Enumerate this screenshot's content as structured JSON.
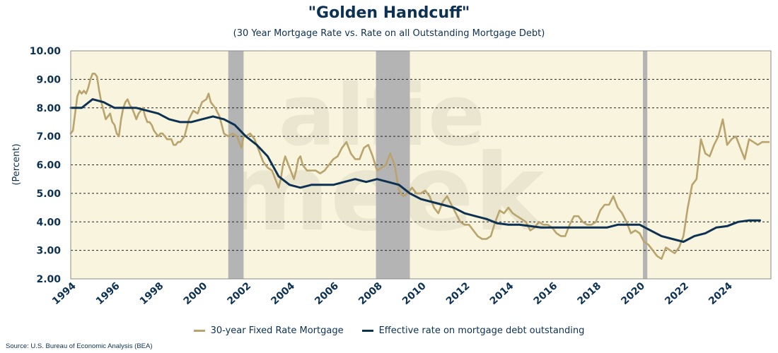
{
  "chart_data": {
    "type": "line",
    "title": "\"Golden Handcuff\"",
    "subtitle": "(30 Year Mortgage Rate vs. Rate on all Outstanding Mortgage Debt)",
    "ylabel": "(Percent)",
    "xlim": [
      1994,
      2026.0
    ],
    "ylim": [
      2.0,
      10.0
    ],
    "x_ticks": [
      "1994",
      "1996",
      "1998",
      "2000",
      "2002",
      "2004",
      "2006",
      "2008",
      "2010",
      "2012",
      "2014",
      "2016",
      "2018",
      "2020",
      "2022",
      "2024"
    ],
    "y_ticks": [
      "2.00",
      "3.00",
      "4.00",
      "5.00",
      "6.00",
      "7.00",
      "8.00",
      "9.00",
      "10.00"
    ],
    "grid": "horizontal-dashed",
    "legend_position": "bottom",
    "recession_bands": [
      [
        2001.2,
        2001.9
      ],
      [
        2007.95,
        2009.5
      ],
      [
        2020.15,
        2020.35
      ]
    ],
    "series": [
      {
        "name": "30-year Fixed Rate Mortgage",
        "color": "#b9a46e",
        "points": [
          [
            1994.0,
            7.1
          ],
          [
            1994.1,
            7.2
          ],
          [
            1994.2,
            7.8
          ],
          [
            1994.3,
            8.4
          ],
          [
            1994.4,
            8.6
          ],
          [
            1994.5,
            8.5
          ],
          [
            1994.6,
            8.6
          ],
          [
            1994.7,
            8.5
          ],
          [
            1994.8,
            8.7
          ],
          [
            1994.9,
            9.0
          ],
          [
            1995.0,
            9.2
          ],
          [
            1995.1,
            9.2
          ],
          [
            1995.2,
            9.1
          ],
          [
            1995.3,
            8.6
          ],
          [
            1995.4,
            8.2
          ],
          [
            1995.5,
            7.9
          ],
          [
            1995.6,
            7.6
          ],
          [
            1995.7,
            7.7
          ],
          [
            1995.8,
            7.8
          ],
          [
            1995.9,
            7.5
          ],
          [
            1996.0,
            7.4
          ],
          [
            1996.1,
            7.1
          ],
          [
            1996.2,
            7.0
          ],
          [
            1996.3,
            7.6
          ],
          [
            1996.4,
            8.0
          ],
          [
            1996.5,
            8.2
          ],
          [
            1996.6,
            8.3
          ],
          [
            1996.7,
            8.1
          ],
          [
            1996.8,
            8.0
          ],
          [
            1996.9,
            7.8
          ],
          [
            1997.0,
            7.6
          ],
          [
            1997.1,
            7.8
          ],
          [
            1997.2,
            7.9
          ],
          [
            1997.3,
            8.0
          ],
          [
            1997.4,
            7.7
          ],
          [
            1997.5,
            7.5
          ],
          [
            1997.6,
            7.5
          ],
          [
            1997.7,
            7.4
          ],
          [
            1997.8,
            7.2
          ],
          [
            1997.9,
            7.1
          ],
          [
            1998.0,
            7.0
          ],
          [
            1998.1,
            7.1
          ],
          [
            1998.2,
            7.1
          ],
          [
            1998.3,
            7.0
          ],
          [
            1998.4,
            6.9
          ],
          [
            1998.5,
            6.9
          ],
          [
            1998.6,
            6.9
          ],
          [
            1998.7,
            6.7
          ],
          [
            1998.8,
            6.7
          ],
          [
            1998.9,
            6.8
          ],
          [
            1999.0,
            6.8
          ],
          [
            1999.2,
            7.0
          ],
          [
            1999.4,
            7.6
          ],
          [
            1999.6,
            7.9
          ],
          [
            1999.8,
            7.8
          ],
          [
            2000.0,
            8.2
          ],
          [
            2000.2,
            8.3
          ],
          [
            2000.3,
            8.5
          ],
          [
            2000.4,
            8.2
          ],
          [
            2000.6,
            8.0
          ],
          [
            2000.8,
            7.7
          ],
          [
            2001.0,
            7.1
          ],
          [
            2001.2,
            7.0
          ],
          [
            2001.4,
            7.1
          ],
          [
            2001.6,
            7.0
          ],
          [
            2001.7,
            6.8
          ],
          [
            2001.8,
            6.6
          ],
          [
            2001.9,
            7.0
          ],
          [
            2002.0,
            7.0
          ],
          [
            2002.2,
            7.1
          ],
          [
            2002.4,
            6.9
          ],
          [
            2002.6,
            6.5
          ],
          [
            2002.8,
            6.1
          ],
          [
            2003.0,
            5.9
          ],
          [
            2003.2,
            5.8
          ],
          [
            2003.3,
            5.6
          ],
          [
            2003.5,
            5.2
          ],
          [
            2003.6,
            5.5
          ],
          [
            2003.7,
            6.0
          ],
          [
            2003.8,
            6.3
          ],
          [
            2004.0,
            5.9
          ],
          [
            2004.2,
            5.5
          ],
          [
            2004.3,
            5.8
          ],
          [
            2004.4,
            6.2
          ],
          [
            2004.5,
            6.3
          ],
          [
            2004.6,
            6.0
          ],
          [
            2004.8,
            5.8
          ],
          [
            2005.0,
            5.8
          ],
          [
            2005.2,
            5.8
          ],
          [
            2005.4,
            5.7
          ],
          [
            2005.6,
            5.8
          ],
          [
            2005.8,
            6.0
          ],
          [
            2006.0,
            6.2
          ],
          [
            2006.2,
            6.3
          ],
          [
            2006.4,
            6.6
          ],
          [
            2006.6,
            6.8
          ],
          [
            2006.8,
            6.4
          ],
          [
            2007.0,
            6.2
          ],
          [
            2007.2,
            6.2
          ],
          [
            2007.4,
            6.6
          ],
          [
            2007.6,
            6.7
          ],
          [
            2007.8,
            6.3
          ],
          [
            2008.0,
            5.8
          ],
          [
            2008.2,
            5.9
          ],
          [
            2008.4,
            6.0
          ],
          [
            2008.6,
            6.4
          ],
          [
            2008.8,
            6.0
          ],
          [
            2009.0,
            5.1
          ],
          [
            2009.2,
            4.9
          ],
          [
            2009.4,
            5.0
          ],
          [
            2009.6,
            5.2
          ],
          [
            2009.8,
            5.0
          ],
          [
            2010.0,
            5.0
          ],
          [
            2010.2,
            5.1
          ],
          [
            2010.4,
            4.9
          ],
          [
            2010.6,
            4.5
          ],
          [
            2010.8,
            4.3
          ],
          [
            2011.0,
            4.7
          ],
          [
            2011.2,
            4.9
          ],
          [
            2011.4,
            4.6
          ],
          [
            2011.6,
            4.3
          ],
          [
            2011.8,
            4.0
          ],
          [
            2012.0,
            3.9
          ],
          [
            2012.2,
            3.9
          ],
          [
            2012.4,
            3.7
          ],
          [
            2012.6,
            3.5
          ],
          [
            2012.8,
            3.4
          ],
          [
            2013.0,
            3.4
          ],
          [
            2013.2,
            3.5
          ],
          [
            2013.4,
            4.0
          ],
          [
            2013.6,
            4.4
          ],
          [
            2013.8,
            4.3
          ],
          [
            2014.0,
            4.5
          ],
          [
            2014.2,
            4.3
          ],
          [
            2014.4,
            4.2
          ],
          [
            2014.6,
            4.1
          ],
          [
            2014.8,
            4.0
          ],
          [
            2015.0,
            3.7
          ],
          [
            2015.2,
            3.8
          ],
          [
            2015.4,
            4.0
          ],
          [
            2015.6,
            3.9
          ],
          [
            2015.8,
            3.9
          ],
          [
            2016.0,
            3.8
          ],
          [
            2016.2,
            3.6
          ],
          [
            2016.4,
            3.5
          ],
          [
            2016.6,
            3.5
          ],
          [
            2016.8,
            3.9
          ],
          [
            2017.0,
            4.2
          ],
          [
            2017.2,
            4.2
          ],
          [
            2017.4,
            4.0
          ],
          [
            2017.6,
            3.9
          ],
          [
            2017.8,
            3.9
          ],
          [
            2018.0,
            4.0
          ],
          [
            2018.2,
            4.4
          ],
          [
            2018.4,
            4.6
          ],
          [
            2018.6,
            4.6
          ],
          [
            2018.8,
            4.9
          ],
          [
            2019.0,
            4.5
          ],
          [
            2019.2,
            4.3
          ],
          [
            2019.4,
            4.0
          ],
          [
            2019.6,
            3.6
          ],
          [
            2019.8,
            3.7
          ],
          [
            2020.0,
            3.6
          ],
          [
            2020.2,
            3.3
          ],
          [
            2020.4,
            3.2
          ],
          [
            2020.6,
            3.0
          ],
          [
            2020.8,
            2.8
          ],
          [
            2021.0,
            2.7
          ],
          [
            2021.2,
            3.1
          ],
          [
            2021.4,
            3.0
          ],
          [
            2021.6,
            2.9
          ],
          [
            2021.8,
            3.1
          ],
          [
            2022.0,
            3.5
          ],
          [
            2022.2,
            4.5
          ],
          [
            2022.4,
            5.3
          ],
          [
            2022.6,
            5.5
          ],
          [
            2022.7,
            6.2
          ],
          [
            2022.8,
            6.9
          ],
          [
            2023.0,
            6.4
          ],
          [
            2023.2,
            6.3
          ],
          [
            2023.4,
            6.7
          ],
          [
            2023.6,
            7.0
          ],
          [
            2023.8,
            7.6
          ],
          [
            2024.0,
            6.7
          ],
          [
            2024.2,
            6.9
          ],
          [
            2024.4,
            7.0
          ],
          [
            2024.6,
            6.6
          ],
          [
            2024.8,
            6.2
          ],
          [
            2025.0,
            6.9
          ],
          [
            2025.2,
            6.8
          ],
          [
            2025.4,
            6.7
          ],
          [
            2025.6,
            6.8
          ],
          [
            2025.9,
            6.8
          ]
        ]
      },
      {
        "name": "Effective rate on mortgage debt outstanding",
        "color": "#0d3152",
        "points": [
          [
            1994.0,
            8.0
          ],
          [
            1994.5,
            8.0
          ],
          [
            1995.0,
            8.3
          ],
          [
            1995.5,
            8.2
          ],
          [
            1996.0,
            8.0
          ],
          [
            1996.5,
            8.0
          ],
          [
            1997.0,
            8.0
          ],
          [
            1997.5,
            7.9
          ],
          [
            1998.0,
            7.8
          ],
          [
            1998.5,
            7.6
          ],
          [
            1999.0,
            7.5
          ],
          [
            1999.5,
            7.5
          ],
          [
            2000.0,
            7.6
          ],
          [
            2000.5,
            7.7
          ],
          [
            2001.0,
            7.6
          ],
          [
            2001.5,
            7.4
          ],
          [
            2002.0,
            7.0
          ],
          [
            2002.5,
            6.7
          ],
          [
            2003.0,
            6.3
          ],
          [
            2003.5,
            5.6
          ],
          [
            2004.0,
            5.3
          ],
          [
            2004.5,
            5.2
          ],
          [
            2005.0,
            5.3
          ],
          [
            2005.5,
            5.3
          ],
          [
            2006.0,
            5.3
          ],
          [
            2006.5,
            5.4
          ],
          [
            2007.0,
            5.5
          ],
          [
            2007.5,
            5.4
          ],
          [
            2008.0,
            5.5
          ],
          [
            2008.5,
            5.4
          ],
          [
            2009.0,
            5.3
          ],
          [
            2009.5,
            5.0
          ],
          [
            2010.0,
            4.8
          ],
          [
            2010.5,
            4.7
          ],
          [
            2011.0,
            4.6
          ],
          [
            2011.5,
            4.5
          ],
          [
            2012.0,
            4.3
          ],
          [
            2012.5,
            4.2
          ],
          [
            2013.0,
            4.1
          ],
          [
            2013.5,
            3.95
          ],
          [
            2014.0,
            3.9
          ],
          [
            2014.5,
            3.9
          ],
          [
            2015.0,
            3.85
          ],
          [
            2015.5,
            3.8
          ],
          [
            2016.0,
            3.8
          ],
          [
            2016.5,
            3.8
          ],
          [
            2017.0,
            3.8
          ],
          [
            2017.5,
            3.8
          ],
          [
            2018.0,
            3.8
          ],
          [
            2018.5,
            3.8
          ],
          [
            2019.0,
            3.9
          ],
          [
            2019.5,
            3.9
          ],
          [
            2020.0,
            3.9
          ],
          [
            2020.5,
            3.7
          ],
          [
            2021.0,
            3.5
          ],
          [
            2021.5,
            3.4
          ],
          [
            2022.0,
            3.3
          ],
          [
            2022.5,
            3.5
          ],
          [
            2023.0,
            3.6
          ],
          [
            2023.5,
            3.8
          ],
          [
            2024.0,
            3.85
          ],
          [
            2024.5,
            4.0
          ],
          [
            2025.0,
            4.05
          ],
          [
            2025.5,
            4.05
          ]
        ]
      }
    ],
    "source": "Source: U.S. Bureau of Economic Analysis (BEA)"
  }
}
